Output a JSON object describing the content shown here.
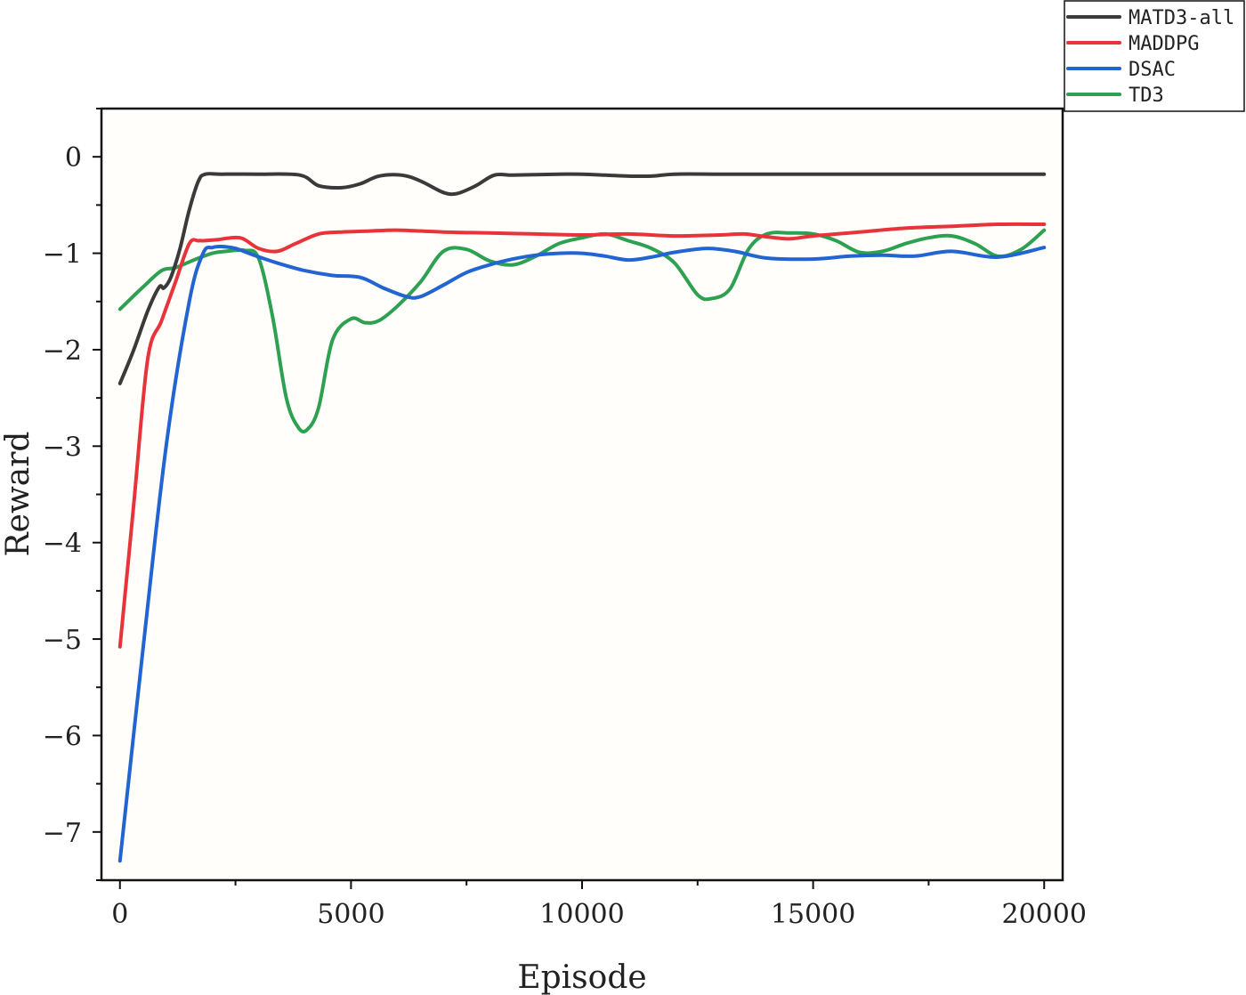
{
  "chart_data": {
    "type": "line",
    "title": "",
    "xlabel": "Episode",
    "ylabel": "Reward",
    "xlim": [
      -400,
      20400
    ],
    "ylim": [
      -7.5,
      0.5
    ],
    "xticks": [
      0,
      5000,
      10000,
      15000,
      20000
    ],
    "xtick_labels": [
      "0",
      "5000",
      "10000",
      "15000",
      "20000"
    ],
    "yticks": [
      0,
      -1,
      -2,
      -3,
      -4,
      -5,
      -6,
      -7
    ],
    "ytick_labels": [
      "0",
      "−1",
      "−2",
      "−3",
      "−4",
      "−5",
      "−6",
      "−7"
    ],
    "grid": false,
    "legend_position": "top-right, outside plot",
    "series": [
      {
        "name": "MATD3-all",
        "color": "#3a3a3a",
        "x": [
          0,
          300,
          600,
          850,
          950,
          1100,
          1300,
          1500,
          1700,
          1850,
          2200,
          3000,
          3900,
          4300,
          4800,
          5200,
          5600,
          6100,
          6500,
          7000,
          7300,
          7700,
          8100,
          8500,
          9000,
          9500,
          10000,
          10500,
          11000,
          11500,
          12000,
          13000,
          14000,
          15000,
          16000,
          17000,
          18000,
          19000,
          20000
        ],
        "y": [
          -2.35,
          -2.0,
          -1.6,
          -1.35,
          -1.36,
          -1.25,
          -0.95,
          -0.55,
          -0.25,
          -0.18,
          -0.18,
          -0.18,
          -0.19,
          -0.3,
          -0.32,
          -0.28,
          -0.2,
          -0.19,
          -0.25,
          -0.37,
          -0.38,
          -0.3,
          -0.19,
          -0.19,
          -0.185,
          -0.18,
          -0.18,
          -0.19,
          -0.2,
          -0.2,
          -0.18,
          -0.18,
          -0.18,
          -0.18,
          -0.18,
          -0.18,
          -0.18,
          -0.18,
          -0.18
        ]
      },
      {
        "name": "MADDPG",
        "color": "#e8333b",
        "x": [
          0,
          300,
          600,
          900,
          1200,
          1500,
          1700,
          1800,
          2100,
          2600,
          3000,
          3400,
          3800,
          4300,
          4800,
          5400,
          6000,
          7000,
          8000,
          9000,
          10000,
          11000,
          12000,
          13000,
          13500,
          14000,
          14500,
          15000,
          16000,
          17000,
          18000,
          19000,
          20000
        ],
        "y": [
          -5.08,
          -3.6,
          -2.1,
          -1.7,
          -1.3,
          -0.9,
          -0.87,
          -0.87,
          -0.86,
          -0.84,
          -0.95,
          -0.98,
          -0.9,
          -0.8,
          -0.78,
          -0.77,
          -0.76,
          -0.78,
          -0.79,
          -0.8,
          -0.81,
          -0.8,
          -0.82,
          -0.81,
          -0.8,
          -0.83,
          -0.85,
          -0.82,
          -0.78,
          -0.74,
          -0.72,
          -0.7,
          -0.7
        ]
      },
      {
        "name": "DSAC",
        "color": "#2264d1",
        "x": [
          0,
          500,
          1000,
          1500,
          1800,
          2000,
          2200,
          2500,
          2900,
          3400,
          4000,
          4600,
          5200,
          5700,
          6200,
          6500,
          7000,
          7500,
          8000,
          8500,
          9000,
          9500,
          10000,
          10500,
          11000,
          11500,
          12000,
          12700,
          13300,
          14000,
          15000,
          15800,
          16500,
          17200,
          18000,
          19000,
          20000
        ],
        "y": [
          -7.3,
          -5.1,
          -3.0,
          -1.5,
          -1.0,
          -0.94,
          -0.93,
          -0.95,
          -1.02,
          -1.1,
          -1.18,
          -1.23,
          -1.25,
          -1.36,
          -1.45,
          -1.45,
          -1.33,
          -1.2,
          -1.12,
          -1.06,
          -1.02,
          -1.0,
          -1.0,
          -1.03,
          -1.07,
          -1.04,
          -0.99,
          -0.95,
          -0.98,
          -1.05,
          -1.06,
          -1.03,
          -1.02,
          -1.03,
          -0.98,
          -1.04,
          -0.94
        ]
      },
      {
        "name": "TD3",
        "color": "#2ea052",
        "x": [
          0,
          500,
          900,
          1200,
          1600,
          2000,
          2300,
          2700,
          3000,
          3300,
          3600,
          3850,
          4050,
          4300,
          4600,
          5000,
          5300,
          5600,
          6000,
          6500,
          7000,
          7500,
          8000,
          8500,
          9000,
          9500,
          10000,
          10500,
          11000,
          11500,
          12000,
          12500,
          12800,
          13200,
          13600,
          14000,
          14500,
          15000,
          15500,
          16000,
          16500,
          17000,
          17500,
          18000,
          18500,
          19000,
          19500,
          20000
        ],
        "y": [
          -1.58,
          -1.35,
          -1.18,
          -1.15,
          -1.07,
          -1.0,
          -0.98,
          -0.97,
          -1.05,
          -1.65,
          -2.5,
          -2.8,
          -2.83,
          -2.6,
          -1.9,
          -1.68,
          -1.72,
          -1.7,
          -1.55,
          -1.3,
          -0.98,
          -0.96,
          -1.08,
          -1.12,
          -1.03,
          -0.9,
          -0.84,
          -0.8,
          -0.87,
          -0.95,
          -1.1,
          -1.43,
          -1.47,
          -1.37,
          -0.96,
          -0.8,
          -0.79,
          -0.8,
          -0.87,
          -0.99,
          -0.98,
          -0.9,
          -0.84,
          -0.82,
          -0.9,
          -1.03,
          -0.96,
          -0.76
        ]
      }
    ]
  }
}
